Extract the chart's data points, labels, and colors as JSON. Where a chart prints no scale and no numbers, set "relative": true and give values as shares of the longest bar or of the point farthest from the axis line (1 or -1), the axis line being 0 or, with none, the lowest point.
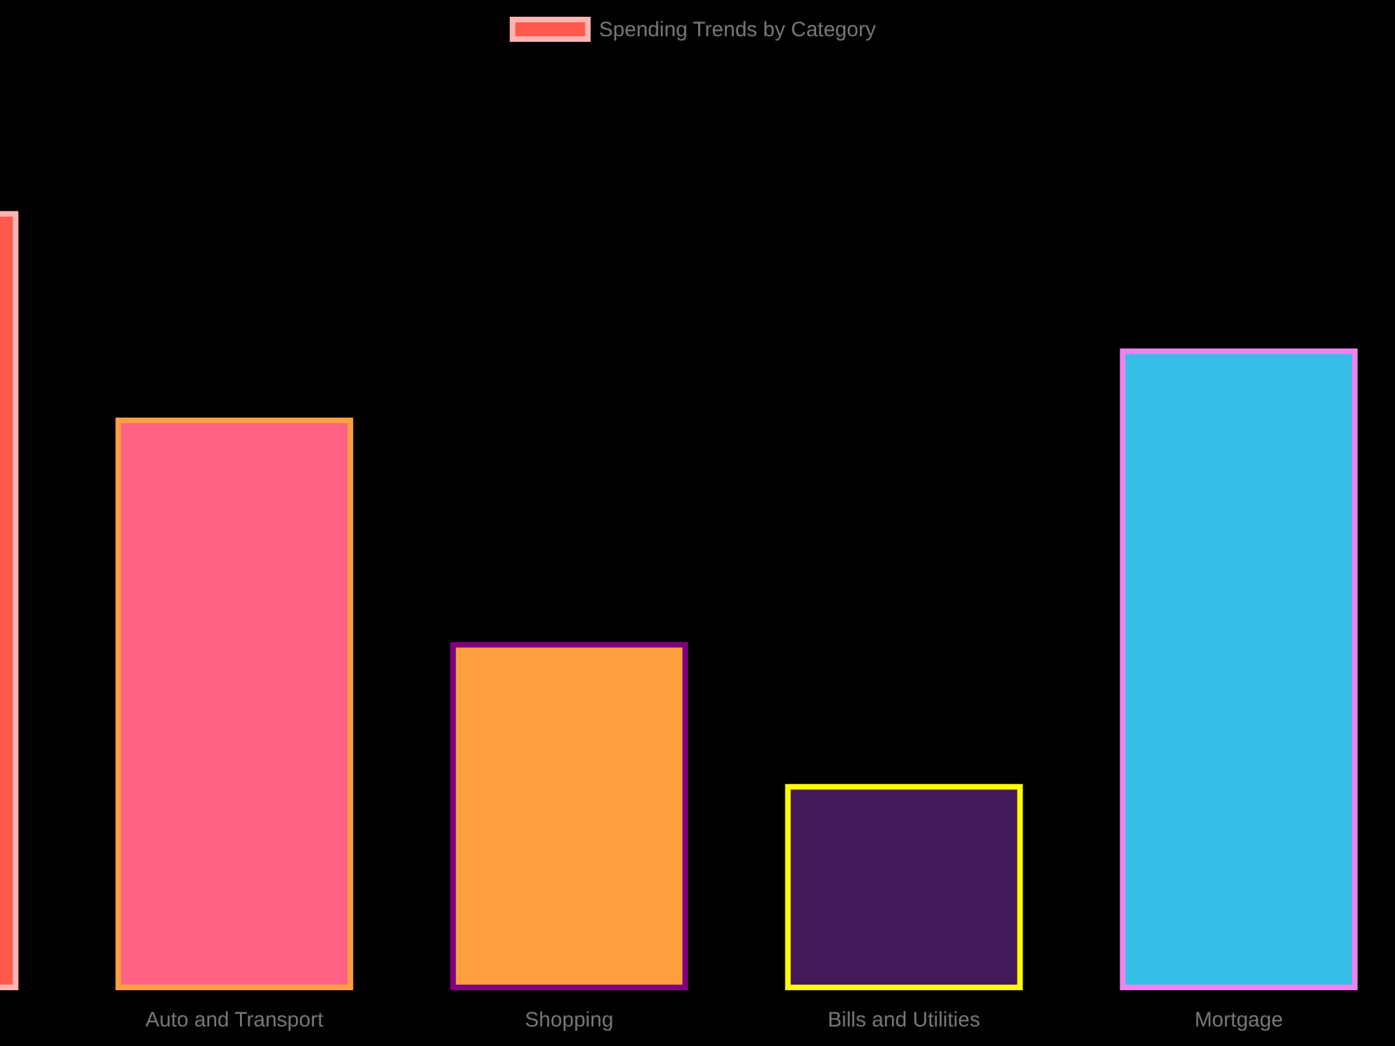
{
  "chart_data": {
    "type": "bar",
    "relative": true,
    "legend": "top",
    "categories": [
      null,
      "Auto and Transport",
      "Shopping",
      "Bills and Utilities",
      "Mortgage"
    ],
    "series": [
      {
        "name": "Spending Trends by Category",
        "color": "#ff5a4d",
        "colors": [
          "#ff5a4d",
          "#ff6384",
          "#ff9f40",
          "#44195a",
          "#36bfe6"
        ],
        "values": [
          1,
          0.734,
          0.445,
          0.262,
          0.823
        ]
      }
    ]
  }
}
